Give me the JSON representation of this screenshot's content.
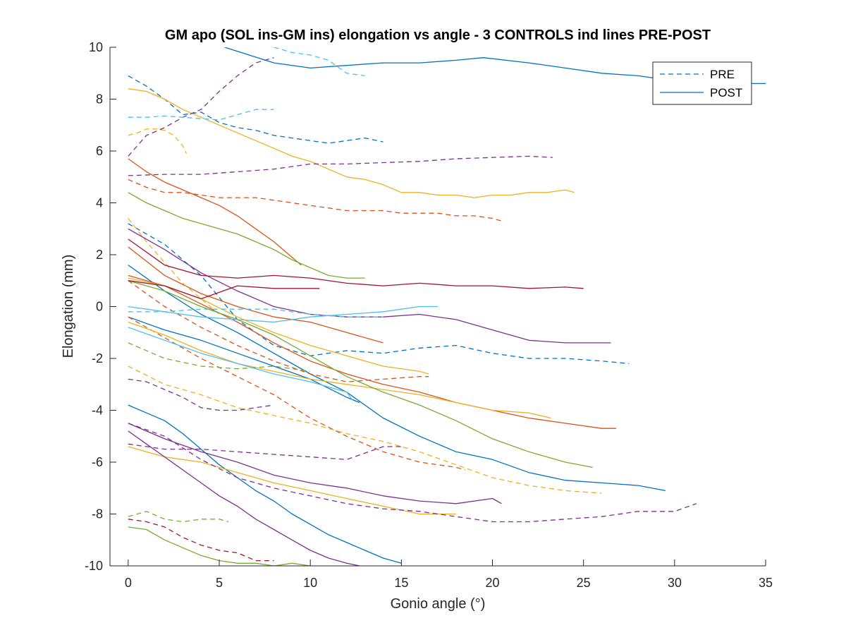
{
  "chart_data": {
    "type": "line",
    "title": "GM apo (SOL ins-GM ins) elongation vs angle - 3 CONTROLS ind lines PRE-POST",
    "xlabel": "Gonio angle (°)",
    "ylabel": "Elongation (mm)",
    "xlim": [
      -1,
      35
    ],
    "ylim": [
      -10,
      10
    ],
    "xticks": [
      0,
      5,
      10,
      15,
      20,
      25,
      30,
      35
    ],
    "yticks": [
      -10,
      -8,
      -6,
      -4,
      -2,
      0,
      2,
      4,
      6,
      8,
      10
    ],
    "xtick_labels": [
      "0",
      "5",
      "10",
      "15",
      "20",
      "25",
      "30",
      "35"
    ],
    "ytick_labels": [
      "-10",
      "-8",
      "-6",
      "-4",
      "-2",
      "0",
      "2",
      "4",
      "6",
      "8",
      "10"
    ],
    "grid": false,
    "legend": {
      "position": "top-right",
      "entries": [
        {
          "label": "PRE",
          "style": "dashed",
          "color": "#0072BD"
        },
        {
          "label": "POST",
          "style": "solid",
          "color": "#0072BD"
        }
      ]
    },
    "series": [
      {
        "color": "#0072BD",
        "style": "dashed",
        "x": [
          0,
          1,
          2,
          3,
          4,
          5,
          6,
          7,
          8,
          9,
          10,
          11,
          12,
          13,
          14
        ],
        "y": [
          8.9,
          8.5,
          8.0,
          7.4,
          7.5,
          7.1,
          6.9,
          6.8,
          6.6,
          6.5,
          6.4,
          6.3,
          6.4,
          6.5,
          6.35
        ]
      },
      {
        "color": "#0072BD",
        "style": "dashed",
        "x": [
          0,
          2,
          4,
          6,
          8,
          10,
          12,
          14,
          16,
          18,
          20,
          22,
          24,
          26,
          27.5
        ],
        "y": [
          3.2,
          2.4,
          1.2,
          -0.5,
          -1.5,
          -1.9,
          -1.7,
          -1.8,
          -1.6,
          -1.5,
          -1.8,
          -2.0,
          -2.0,
          -2.1,
          -2.2
        ]
      },
      {
        "color": "#0072BD",
        "style": "solid",
        "x": [
          5.3,
          8,
          10,
          12,
          14,
          16,
          18,
          19.5,
          22,
          24,
          26,
          28,
          30,
          32,
          34,
          35
        ],
        "y": [
          10.0,
          9.4,
          9.2,
          9.3,
          9.4,
          9.4,
          9.5,
          9.6,
          9.4,
          9.2,
          9.0,
          8.9,
          8.7,
          8.7,
          8.6,
          8.6
        ]
      },
      {
        "color": "#0072BD",
        "style": "solid",
        "x": [
          0,
          2,
          4,
          6,
          8,
          10,
          12,
          14,
          16,
          18,
          20,
          22,
          24,
          26,
          28,
          29.5
        ],
        "y": [
          1.6,
          0.6,
          -0.3,
          -1.0,
          -1.8,
          -2.6,
          -3.3,
          -4.3,
          -5.0,
          -5.6,
          -5.9,
          -6.4,
          -6.7,
          -6.8,
          -6.9,
          -7.1
        ]
      },
      {
        "color": "#0072BD",
        "style": "solid",
        "x": [
          0,
          1,
          2,
          3,
          4,
          5,
          6,
          7,
          8,
          9,
          10,
          11,
          12,
          13,
          14,
          15
        ],
        "y": [
          -3.8,
          -4.1,
          -4.4,
          -4.9,
          -5.5,
          -6.1,
          -6.6,
          -7.1,
          -7.5,
          -8.0,
          -8.4,
          -8.8,
          -9.1,
          -9.4,
          -9.7,
          -9.9
        ]
      },
      {
        "color": "#0072BD",
        "style": "solid",
        "x": [
          0,
          2,
          4,
          6,
          8,
          10,
          12,
          12.7
        ],
        "y": [
          -0.4,
          -0.9,
          -1.3,
          -1.8,
          -2.3,
          -2.8,
          -3.5,
          -3.7
        ]
      },
      {
        "color": "#D95319",
        "style": "dashed",
        "x": [
          0,
          1,
          2,
          3,
          4,
          5,
          6,
          7,
          8,
          9,
          10,
          11,
          12,
          13,
          14,
          15,
          16,
          17,
          18,
          19,
          20,
          20.5
        ],
        "y": [
          4.9,
          4.6,
          4.4,
          4.4,
          4.3,
          4.2,
          4.2,
          4.2,
          4.1,
          4.0,
          3.9,
          3.8,
          3.7,
          3.7,
          3.7,
          3.6,
          3.6,
          3.6,
          3.5,
          3.5,
          3.4,
          3.3
        ]
      },
      {
        "color": "#D95319",
        "style": "dashed",
        "x": [
          0,
          2,
          4,
          6,
          8,
          10,
          12,
          14,
          16,
          16.5
        ],
        "y": [
          1.0,
          0.0,
          -0.8,
          -1.5,
          -2.1,
          -2.6,
          -2.9,
          -2.8,
          -2.7,
          -2.7
        ]
      },
      {
        "color": "#D95319",
        "style": "dashed",
        "x": [
          0,
          2,
          4,
          6,
          8,
          10,
          12,
          14,
          16,
          18,
          18.5
        ],
        "y": [
          -0.4,
          -1.2,
          -2.0,
          -2.7,
          -3.4,
          -4.3,
          -5.0,
          -5.6,
          -6.0,
          -6.2,
          -6.3
        ]
      },
      {
        "color": "#D95319",
        "style": "solid",
        "x": [
          0,
          1,
          2,
          3,
          4,
          5,
          6,
          7,
          8,
          9,
          9.5
        ],
        "y": [
          5.7,
          5.2,
          4.8,
          4.5,
          4.2,
          3.9,
          3.5,
          3.0,
          2.5,
          1.9,
          1.6
        ]
      },
      {
        "color": "#D95319",
        "style": "solid",
        "x": [
          0,
          2,
          4,
          6,
          8,
          10,
          12,
          14
        ],
        "y": [
          2.3,
          1.2,
          0.5,
          0.0,
          -0.4,
          -0.6,
          -1.0,
          -1.4
        ]
      },
      {
        "color": "#D95319",
        "style": "solid",
        "x": [
          0,
          2,
          4,
          6,
          8,
          10,
          12,
          14,
          16,
          18,
          20,
          22,
          24,
          26,
          26.8
        ],
        "y": [
          1.2,
          0.8,
          0.1,
          -0.6,
          -1.4,
          -2.1,
          -2.6,
          -3.0,
          -3.3,
          -3.7,
          -4.0,
          -4.3,
          -4.5,
          -4.7,
          -4.7
        ]
      },
      {
        "color": "#EDB120",
        "style": "dashed",
        "x": [
          0,
          0.5,
          1,
          1.5,
          2,
          2.5,
          3,
          3.2
        ],
        "y": [
          6.6,
          6.7,
          6.85,
          6.85,
          6.8,
          6.6,
          6.2,
          5.9
        ]
      },
      {
        "color": "#EDB120",
        "style": "dashed",
        "x": [
          0,
          1,
          2,
          3,
          4,
          5
        ],
        "y": [
          3.4,
          2.5,
          1.7,
          0.9,
          0.3,
          -0.3
        ]
      },
      {
        "color": "#EDB120",
        "style": "dashed",
        "x": [
          0,
          2,
          4,
          6,
          8,
          10,
          12,
          14,
          16,
          18,
          20,
          22,
          24,
          26
        ],
        "y": [
          -2.3,
          -3.0,
          -3.4,
          -3.9,
          -4.2,
          -4.5,
          -4.9,
          -5.2,
          -5.6,
          -6.1,
          -6.6,
          -6.9,
          -7.1,
          -7.2
        ]
      },
      {
        "color": "#EDB120",
        "style": "solid",
        "x": [
          0,
          1,
          2,
          3,
          4,
          5,
          6,
          7,
          8,
          9,
          10,
          11,
          12,
          13,
          14,
          15,
          16,
          17,
          18,
          19,
          20,
          21,
          22,
          23,
          24,
          24.5
        ],
        "y": [
          8.4,
          8.3,
          8.0,
          7.6,
          7.3,
          7.0,
          6.7,
          6.4,
          6.1,
          5.8,
          5.6,
          5.3,
          5.0,
          4.9,
          4.7,
          4.4,
          4.4,
          4.3,
          4.3,
          4.2,
          4.3,
          4.3,
          4.4,
          4.4,
          4.5,
          4.4
        ]
      },
      {
        "color": "#EDB120",
        "style": "solid",
        "x": [
          0,
          2,
          4,
          6,
          8,
          10,
          12,
          14,
          16,
          16.5
        ],
        "y": [
          1.1,
          0.8,
          0.3,
          -0.4,
          -1.0,
          -1.5,
          -1.9,
          -2.3,
          -2.5,
          -2.6
        ]
      },
      {
        "color": "#EDB120",
        "style": "solid",
        "x": [
          0,
          2,
          4,
          6,
          8,
          10,
          12,
          14,
          16,
          18,
          20,
          22,
          23.2
        ],
        "y": [
          -0.6,
          -1.1,
          -1.7,
          -2.2,
          -2.5,
          -2.8,
          -3.0,
          -3.2,
          -3.4,
          -3.7,
          -4.0,
          -4.1,
          -4.3
        ]
      },
      {
        "color": "#EDB120",
        "style": "solid",
        "x": [
          0,
          2,
          4,
          6,
          8,
          10,
          12,
          14,
          16,
          18
        ],
        "y": [
          -5.4,
          -5.8,
          -6.0,
          -6.4,
          -6.8,
          -7.1,
          -7.4,
          -7.7,
          -8.0,
          -8.0
        ]
      },
      {
        "color": "#7E2F8E",
        "style": "dashed",
        "x": [
          0,
          1,
          2,
          3,
          4,
          5,
          6,
          7,
          8
        ],
        "y": [
          5.8,
          6.6,
          6.9,
          7.3,
          7.6,
          8.3,
          8.9,
          9.4,
          9.6
        ]
      },
      {
        "color": "#7E2F8E",
        "style": "dashed",
        "x": [
          0,
          2,
          4,
          6,
          8,
          10,
          12,
          14,
          16,
          18,
          20,
          22,
          23.3
        ],
        "y": [
          5.05,
          5.1,
          5.1,
          5.2,
          5.3,
          5.5,
          5.5,
          5.55,
          5.6,
          5.7,
          5.75,
          5.8,
          5.75
        ]
      },
      {
        "color": "#7E2F8E",
        "style": "dashed",
        "x": [
          0,
          1,
          2,
          3,
          4,
          5,
          6,
          7,
          8
        ],
        "y": [
          -2.8,
          -2.9,
          -3.2,
          -3.5,
          -3.9,
          -4.0,
          -4.0,
          -3.9,
          -3.8
        ]
      },
      {
        "color": "#7E2F8E",
        "style": "dashed",
        "x": [
          0,
          2,
          4,
          6,
          8,
          10,
          12,
          14,
          16,
          18,
          20,
          22,
          24,
          26,
          28,
          30,
          31.2
        ],
        "y": [
          -4.5,
          -5.0,
          -5.9,
          -6.6,
          -7.0,
          -7.3,
          -7.6,
          -7.8,
          -7.9,
          -8.1,
          -8.3,
          -8.3,
          -8.2,
          -8.1,
          -7.9,
          -7.9,
          -7.6
        ]
      },
      {
        "color": "#7E2F8E",
        "style": "dashed",
        "x": [
          0,
          2,
          4,
          6,
          8,
          10,
          12,
          14,
          15
        ],
        "y": [
          -5.3,
          -5.5,
          -5.5,
          -5.6,
          -5.7,
          -5.8,
          -5.9,
          -5.4,
          -5.4
        ]
      },
      {
        "color": "#7E2F8E",
        "style": "solid",
        "x": [
          0,
          2,
          4,
          6,
          8,
          10,
          12,
          14,
          16,
          18,
          20,
          22,
          24,
          26,
          26.5
        ],
        "y": [
          3.0,
          2.2,
          1.3,
          0.6,
          0.0,
          -0.3,
          -0.4,
          -0.4,
          -0.3,
          -0.5,
          -0.9,
          -1.3,
          -1.4,
          -1.4,
          -1.4
        ]
      },
      {
        "color": "#7E2F8E",
        "style": "solid",
        "x": [
          0,
          2,
          4,
          6,
          8,
          10,
          12,
          14,
          16,
          18,
          20,
          20.5
        ],
        "y": [
          -4.5,
          -5.1,
          -5.6,
          -6.0,
          -6.5,
          -6.8,
          -7.0,
          -7.3,
          -7.5,
          -7.6,
          -7.4,
          -7.6
        ]
      },
      {
        "color": "#7E2F8E",
        "style": "solid",
        "x": [
          0,
          1,
          2,
          3,
          4,
          5,
          6,
          7,
          8,
          9,
          10,
          11,
          12,
          12.7
        ],
        "y": [
          -4.8,
          -5.3,
          -5.8,
          -6.3,
          -6.8,
          -7.3,
          -7.7,
          -8.2,
          -8.6,
          -9.0,
          -9.4,
          -9.7,
          -9.9,
          -10.0
        ]
      },
      {
        "color": "#77AC30",
        "style": "dashed",
        "x": [
          0,
          1,
          2,
          3,
          4,
          5,
          5.5
        ],
        "y": [
          -8.1,
          -7.9,
          -8.2,
          -8.3,
          -8.2,
          -8.2,
          -8.3
        ]
      },
      {
        "color": "#77AC30",
        "style": "dashed",
        "x": [
          0,
          2,
          4,
          6,
          8,
          10
        ],
        "y": [
          -1.4,
          -2.0,
          -2.3,
          -2.4,
          -2.3,
          -2.5
        ]
      },
      {
        "color": "#77AC30",
        "style": "solid",
        "x": [
          0,
          1,
          2,
          3,
          4,
          5,
          6,
          7,
          8,
          9,
          10,
          11,
          12,
          13
        ],
        "y": [
          4.4,
          4.0,
          3.7,
          3.4,
          3.2,
          3.0,
          2.8,
          2.5,
          2.2,
          1.8,
          1.5,
          1.2,
          1.1,
          1.1
        ]
      },
      {
        "color": "#77AC30",
        "style": "solid",
        "x": [
          0,
          2,
          4,
          6,
          8,
          10,
          12,
          14,
          16,
          18,
          20,
          22,
          24,
          25.5
        ],
        "y": [
          1.0,
          0.6,
          0.0,
          -0.5,
          -1.1,
          -1.9,
          -2.7,
          -3.3,
          -3.8,
          -4.4,
          -5.1,
          -5.6,
          -6.0,
          -6.2
        ]
      },
      {
        "color": "#77AC30",
        "style": "solid",
        "x": [
          0,
          1,
          2,
          3,
          4,
          5,
          6,
          7,
          8,
          9,
          10
        ],
        "y": [
          -8.5,
          -8.6,
          -9.0,
          -9.3,
          -9.6,
          -9.8,
          -9.9,
          -9.9,
          -10.0,
          -9.9,
          -10.0
        ]
      },
      {
        "color": "#4DBEEE",
        "style": "dashed",
        "x": [
          0,
          1,
          2,
          3,
          4,
          5,
          6,
          7,
          8
        ],
        "y": [
          7.3,
          7.3,
          7.35,
          7.3,
          7.25,
          7.2,
          7.4,
          7.6,
          7.6
        ]
      },
      {
        "color": "#4DBEEE",
        "style": "dashed",
        "x": [
          8,
          9,
          10,
          11,
          12,
          13
        ],
        "y": [
          10.0,
          9.8,
          9.7,
          9.5,
          9.0,
          8.9
        ]
      },
      {
        "color": "#4DBEEE",
        "style": "dashed",
        "x": [
          0,
          2,
          4,
          6,
          8,
          10,
          12,
          14
        ],
        "y": [
          -0.2,
          -0.2,
          -0.1,
          -0.1,
          -0.1,
          -0.3,
          -0.4,
          -0.4
        ]
      },
      {
        "color": "#4DBEEE",
        "style": "solid",
        "x": [
          0,
          2,
          4,
          6,
          8,
          10,
          12,
          14,
          16,
          17
        ],
        "y": [
          0.0,
          -0.2,
          -0.4,
          -0.5,
          -0.6,
          -0.4,
          -0.3,
          -0.2,
          0.0,
          0.0
        ]
      },
      {
        "color": "#4DBEEE",
        "style": "solid",
        "x": [
          0,
          2,
          4,
          6,
          8,
          10,
          12,
          12.3
        ],
        "y": [
          -0.8,
          -1.3,
          -1.8,
          -2.2,
          -2.6,
          -2.9,
          -3.3,
          -3.6
        ]
      },
      {
        "color": "#A2142F",
        "style": "dashed",
        "x": [
          0,
          1,
          2,
          3,
          4,
          5,
          6,
          7,
          8
        ],
        "y": [
          -8.2,
          -8.3,
          -8.5,
          -8.9,
          -9.2,
          -9.4,
          -9.5,
          -9.8,
          -9.8
        ]
      },
      {
        "color": "#A2142F",
        "style": "solid",
        "x": [
          0,
          2,
          4,
          6,
          8,
          10,
          12,
          14,
          16,
          18,
          20,
          22,
          24,
          25
        ],
        "y": [
          2.6,
          1.6,
          1.2,
          1.1,
          1.2,
          1.1,
          0.9,
          0.8,
          0.9,
          0.8,
          0.8,
          0.7,
          0.75,
          0.7
        ]
      },
      {
        "color": "#A2142F",
        "style": "solid",
        "x": [
          0,
          2,
          4,
          6,
          8,
          10,
          10.5
        ],
        "y": [
          1.0,
          0.8,
          0.3,
          0.8,
          0.7,
          0.7,
          0.7
        ]
      }
    ]
  }
}
